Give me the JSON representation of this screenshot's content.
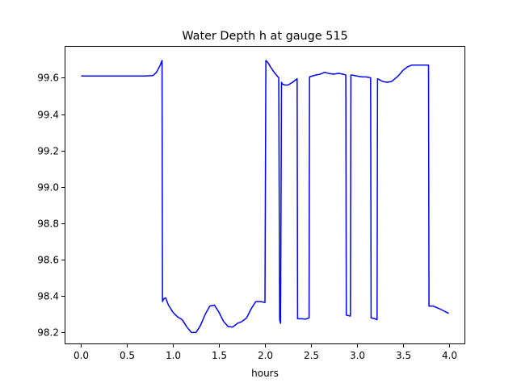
{
  "chart_data": {
    "type": "line",
    "title": "Water Depth h at gauge 515",
    "xlabel": "hours",
    "ylabel": "",
    "xlim": [
      -0.18,
      4.18
    ],
    "ylim": [
      98.135,
      99.775
    ],
    "xticks": [
      0.0,
      0.5,
      1.0,
      1.5,
      2.0,
      2.5,
      3.0,
      3.5,
      4.0
    ],
    "xtick_labels": [
      "0.0",
      "0.5",
      "1.0",
      "1.5",
      "2.0",
      "2.5",
      "3.0",
      "3.5",
      "4.0"
    ],
    "yticks": [
      98.2,
      98.4,
      98.6,
      98.8,
      99.0,
      99.2,
      99.4,
      99.6
    ],
    "ytick_labels": [
      "98.2",
      "98.4",
      "98.6",
      "98.8",
      "99.0",
      "99.2",
      "99.4",
      "99.6"
    ],
    "grid": false,
    "series": [
      {
        "color": "#0000ff",
        "x": [
          0.0,
          0.2,
          0.4,
          0.6,
          0.7,
          0.78,
          0.82,
          0.86,
          0.88,
          0.885,
          0.9,
          0.92,
          0.95,
          1.0,
          1.05,
          1.1,
          1.15,
          1.2,
          1.25,
          1.3,
          1.35,
          1.4,
          1.45,
          1.5,
          1.55,
          1.6,
          1.65,
          1.7,
          1.75,
          1.8,
          1.85,
          1.9,
          1.95,
          2.0,
          2.01,
          2.03,
          2.06,
          2.1,
          2.15,
          2.16,
          2.17,
          2.18,
          2.19,
          2.22,
          2.25,
          2.3,
          2.35,
          2.355,
          2.4,
          2.44,
          2.48,
          2.485,
          2.55,
          2.6,
          2.65,
          2.7,
          2.75,
          2.8,
          2.85,
          2.88,
          2.885,
          2.93,
          2.935,
          2.95,
          3.0,
          3.05,
          3.1,
          3.15,
          3.155,
          3.2,
          3.22,
          3.225,
          3.28,
          3.33,
          3.38,
          3.45,
          3.5,
          3.55,
          3.6,
          3.65,
          3.7,
          3.75,
          3.78,
          3.785,
          3.83,
          3.9,
          4.0
        ],
        "y": [
          99.61,
          99.61,
          99.61,
          99.61,
          99.61,
          99.612,
          99.63,
          99.67,
          99.695,
          98.37,
          98.385,
          98.39,
          98.35,
          98.31,
          98.285,
          98.27,
          98.23,
          98.2,
          98.2,
          98.24,
          98.3,
          98.345,
          98.35,
          98.31,
          98.26,
          98.232,
          98.23,
          98.25,
          98.26,
          98.28,
          98.33,
          98.37,
          98.37,
          98.365,
          99.695,
          99.685,
          99.66,
          99.63,
          99.6,
          98.27,
          98.25,
          99.575,
          99.565,
          99.56,
          99.56,
          99.575,
          99.595,
          98.275,
          98.275,
          98.273,
          98.28,
          99.605,
          99.615,
          99.62,
          99.63,
          99.623,
          99.62,
          99.625,
          99.62,
          99.615,
          98.295,
          98.29,
          99.615,
          99.615,
          99.61,
          99.605,
          99.605,
          99.6,
          98.28,
          98.275,
          98.27,
          99.595,
          99.58,
          99.575,
          99.58,
          99.61,
          99.64,
          99.66,
          99.67,
          99.67,
          99.67,
          99.67,
          99.67,
          98.345,
          98.345,
          98.33,
          98.305
        ]
      }
    ]
  }
}
